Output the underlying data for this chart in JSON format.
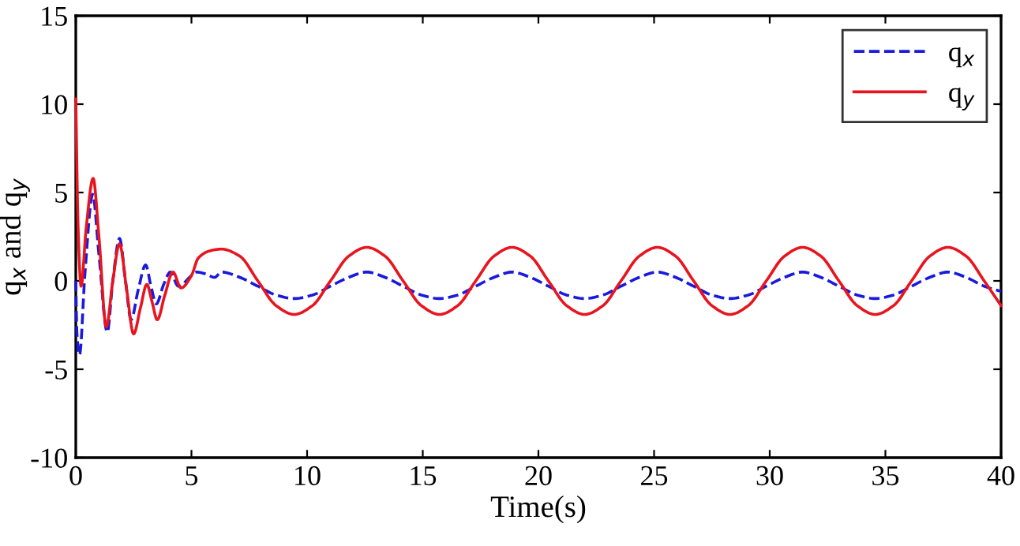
{
  "chart_data": {
    "type": "line",
    "xlabel": "Time(s)",
    "ylabel": "q$_{x}$ and q$_{y}$",
    "xlim": [
      0,
      40
    ],
    "ylim": [
      -10,
      15
    ],
    "xticks": [
      0,
      5,
      10,
      15,
      20,
      25,
      30,
      35,
      40
    ],
    "yticks": [
      -10,
      -5,
      0,
      5,
      10,
      15
    ],
    "grid": false,
    "legend": "top right",
    "series": [
      {
        "name": "q$_{x}$",
        "color": "#1a1adc",
        "line_style": "dashed",
        "x": [
          0,
          0.05,
          0.16,
          0.4,
          0.73,
          1.0,
          1.36,
          1.6,
          1.89,
          2.15,
          2.39,
          2.7,
          3.02,
          3.25,
          3.48,
          3.8,
          4.09,
          4.43,
          5,
          5.2,
          5.6,
          6.0,
          6.3,
          7.09,
          7.87,
          8.66,
          9.44,
          10.23,
          11.01,
          11.8,
          12.58,
          13.37,
          14.15,
          14.94,
          15.72,
          16.51,
          17.29,
          18.08,
          18.86,
          19.65,
          20.43,
          21.22,
          22.0,
          22.79,
          23.57,
          24.36,
          25.14,
          25.93,
          26.71,
          27.5,
          28.28,
          29.07,
          29.85,
          30.64,
          31.42,
          32.21,
          32.99,
          33.78,
          34.56,
          35.35,
          36.13,
          36.92,
          37.7,
          38.49,
          39.27,
          40
        ],
        "values": [
          0,
          -3,
          -4.2,
          0.5,
          4.9,
          1.5,
          -2.9,
          0,
          2.4,
          0,
          -2.2,
          -0.5,
          0.9,
          -0.3,
          -1.3,
          -0.2,
          0.5,
          -0.3,
          0.3,
          0.5,
          0.4,
          0.2,
          0.5,
          0.2,
          -0.3,
          -0.8,
          -1.0,
          -0.8,
          -0.3,
          0.2,
          0.5,
          0.2,
          -0.3,
          -0.8,
          -1.0,
          -0.8,
          -0.3,
          0.2,
          0.5,
          0.2,
          -0.3,
          -0.8,
          -1.0,
          -0.8,
          -0.3,
          0.2,
          0.5,
          0.2,
          -0.3,
          -0.8,
          -1.0,
          -0.8,
          -0.3,
          0.2,
          0.5,
          0.2,
          -0.3,
          -0.8,
          -1.0,
          -0.8,
          -0.3,
          0.2,
          0.5,
          0.2,
          -0.3,
          -0.6
        ]
      },
      {
        "name": "q$_{y}$",
        "color": "#e8141e",
        "line_style": "solid",
        "x": [
          0,
          0.1,
          0.23,
          0.45,
          0.75,
          1.0,
          1.32,
          1.6,
          1.89,
          2.2,
          2.5,
          2.8,
          3.07,
          3.3,
          3.52,
          3.85,
          4.2,
          4.55,
          5,
          5.3,
          5.8,
          6.3,
          7.09,
          7.87,
          8.66,
          9.44,
          10.23,
          11.01,
          11.8,
          12.58,
          13.37,
          14.15,
          14.94,
          15.72,
          16.51,
          17.29,
          18.08,
          18.86,
          19.65,
          20.43,
          21.22,
          22.0,
          22.79,
          23.57,
          24.36,
          25.14,
          25.93,
          26.71,
          27.5,
          28.28,
          29.07,
          29.85,
          30.64,
          31.42,
          32.21,
          32.99,
          33.78,
          34.56,
          35.35,
          36.13,
          36.92,
          37.7,
          38.49,
          39.27,
          40
        ],
        "values": [
          10.3,
          3,
          -0.3,
          3,
          5.8,
          2.5,
          -2.6,
          0,
          2.1,
          -0.5,
          -3.0,
          -1.5,
          -0.2,
          -1.2,
          -2.2,
          -0.8,
          0.5,
          -0.4,
          0.3,
          1.3,
          1.7,
          1.8,
          1.4,
          0,
          -1.4,
          -1.9,
          -1.4,
          0,
          1.4,
          1.9,
          1.4,
          0,
          -1.4,
          -1.9,
          -1.4,
          0,
          1.4,
          1.9,
          1.4,
          0,
          -1.4,
          -1.9,
          -1.4,
          0,
          1.4,
          1.9,
          1.4,
          0,
          -1.4,
          -1.9,
          -1.4,
          0,
          1.4,
          1.9,
          1.4,
          0,
          -1.4,
          -1.9,
          -1.4,
          0,
          1.4,
          1.9,
          1.4,
          0,
          -1.4
        ]
      }
    ]
  }
}
